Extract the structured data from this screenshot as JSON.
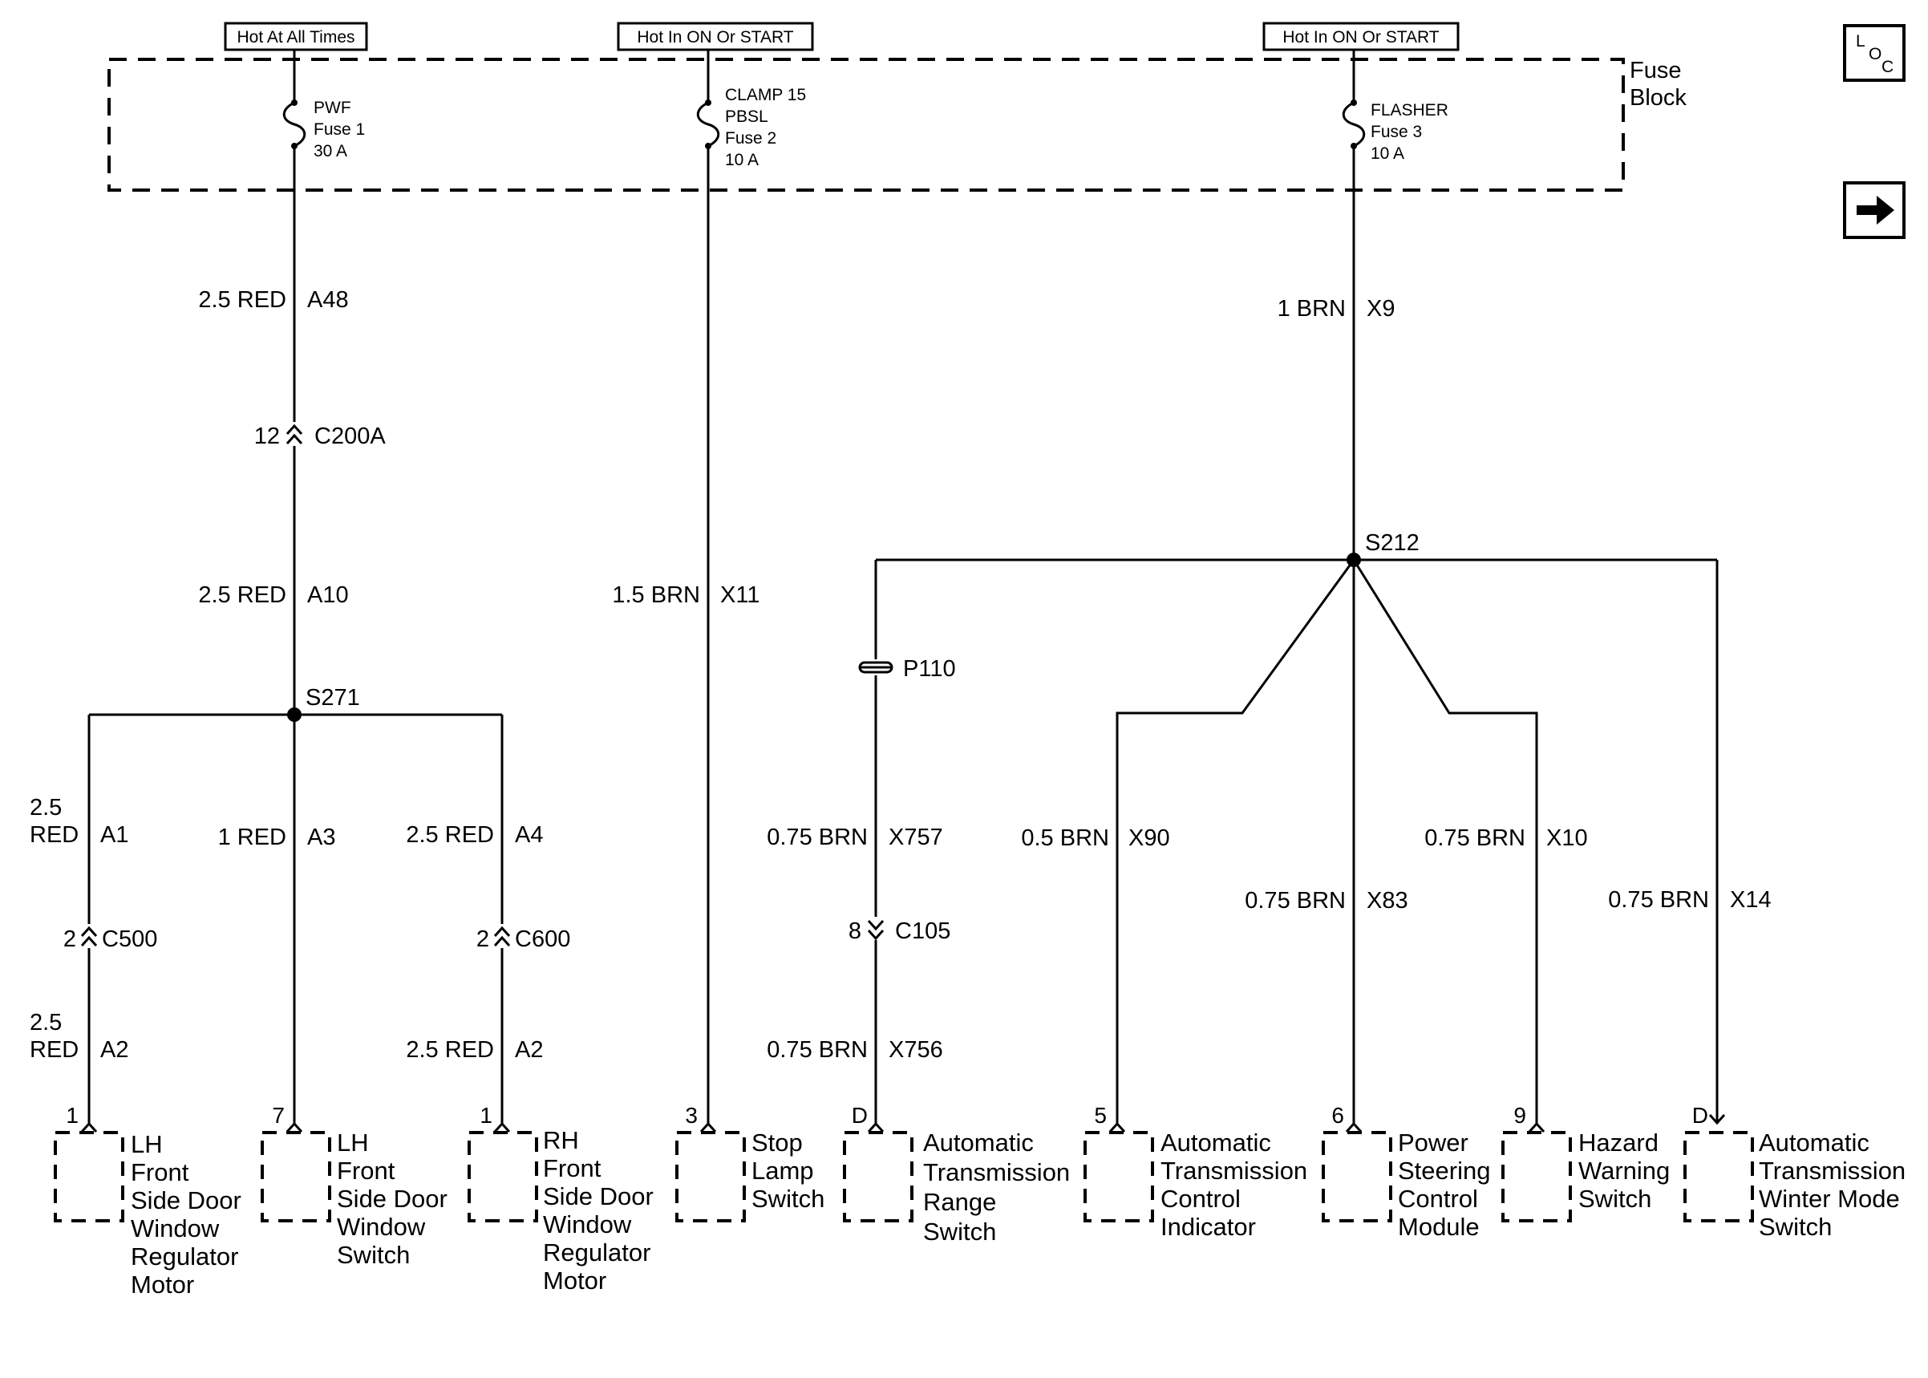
{
  "power": {
    "hot1": "Hot At All Times",
    "hot2": "Hot In ON Or START",
    "hot3": "Hot In ON Or START"
  },
  "fuse_block": {
    "line1": "Fuse",
    "line2": "Block"
  },
  "fuses": [
    {
      "name": "PWF",
      "fuse": "Fuse 1",
      "rating": "30 A"
    },
    {
      "name": "CLAMP 15",
      "name2": "PBSL",
      "fuse": "Fuse 2",
      "rating": "10 A"
    },
    {
      "name": "FLASHER",
      "fuse": "Fuse 3",
      "rating": "10 A"
    }
  ],
  "icons": {
    "loc": "loc-icon",
    "next": "right-arrow-icon"
  },
  "loc": {
    "l": "L",
    "o": "O",
    "c": "C"
  },
  "wires": {
    "a48": {
      "size": "2.5",
      "color": "RED",
      "id": "A48"
    },
    "a10": {
      "size": "2.5",
      "color": "RED",
      "id": "A10"
    },
    "a1": {
      "size": "2.5",
      "color": "RED",
      "id": "A1"
    },
    "a2_lh": {
      "size": "2.5",
      "color": "RED",
      "id": "A2"
    },
    "a3": {
      "size": "1",
      "color": "RED",
      "id": "A3"
    },
    "a4": {
      "size": "2.5",
      "color": "RED",
      "id": "A4"
    },
    "a2_rh": {
      "size": "2.5",
      "color": "RED",
      "id": "A2"
    },
    "x11": {
      "size": "1.5",
      "color": "BRN",
      "id": "X11"
    },
    "x9": {
      "size": "1",
      "color": "BRN",
      "id": "X9"
    },
    "x757": {
      "size": "0.75",
      "color": "BRN",
      "id": "X757"
    },
    "x756": {
      "size": "0.75",
      "color": "BRN",
      "id": "X756"
    },
    "x90": {
      "size": "0.5",
      "color": "BRN",
      "id": "X90"
    },
    "x83": {
      "size": "0.75",
      "color": "BRN",
      "id": "X83"
    },
    "x10": {
      "size": "0.75",
      "color": "BRN",
      "id": "X10"
    },
    "x14": {
      "size": "0.75",
      "color": "BRN",
      "id": "X14"
    }
  },
  "connectors": {
    "c200a": {
      "pin": "12",
      "name": "C200A"
    },
    "c500": {
      "pin": "2",
      "name": "C500"
    },
    "c600": {
      "pin": "2",
      "name": "C600"
    },
    "c105": {
      "pin": "8",
      "name": "C105"
    }
  },
  "splices": {
    "s271": "S271",
    "s212": "S212"
  },
  "passthrough": {
    "p110": "P110"
  },
  "components": [
    {
      "pin": "1",
      "lines": [
        "LH",
        "Front",
        "Side Door",
        "Window",
        "Regulator",
        "Motor"
      ]
    },
    {
      "pin": "7",
      "lines": [
        "LH",
        "Front",
        "Side Door",
        "Window",
        "Switch"
      ]
    },
    {
      "pin": "1",
      "lines": [
        "RH",
        "Front",
        "Side Door",
        "Window",
        "Regulator",
        "Motor"
      ]
    },
    {
      "pin": "3",
      "lines": [
        "Stop",
        "Lamp",
        "Switch"
      ]
    },
    {
      "pin": "D",
      "lines": [
        "Automatic",
        "Transmission",
        "Range",
        "Switch"
      ]
    },
    {
      "pin": "5",
      "lines": [
        "Automatic",
        "Transmission",
        "Control",
        "Indicator"
      ]
    },
    {
      "pin": "6",
      "lines": [
        "Power",
        "Steering",
        "Control",
        "Module"
      ]
    },
    {
      "pin": "9",
      "lines": [
        "Hazard",
        "Warning",
        "Switch"
      ]
    },
    {
      "pin": "D",
      "lines": [
        "Automatic",
        "Transmission",
        "Winter Mode",
        "Switch"
      ]
    }
  ]
}
